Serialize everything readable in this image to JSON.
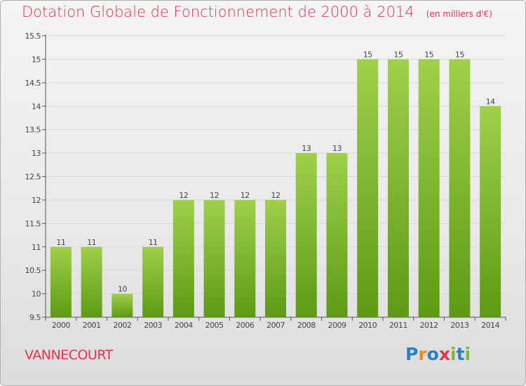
{
  "title": "Dotation Globale de Fonctionnement de 2000 à 2014",
  "unit_note": "(en milliers d'€)",
  "town": "VANNECOURT",
  "logo": {
    "text": "Proxiti",
    "letters": [
      "P",
      "r",
      "o",
      "x",
      "i",
      "t",
      "i"
    ],
    "colors": [
      "#2b7fc6",
      "#f28a1c",
      "#2b7fc6",
      "#e0344c",
      "#7db83a",
      "#2b7fc6",
      "#7db83a"
    ]
  },
  "colors": {
    "bar_top": "#9fd04a",
    "bar_bottom": "#5e9a14",
    "title": "#e0344c",
    "grid": "#d9d9d9"
  },
  "chart_data": {
    "type": "bar",
    "title": "Dotation Globale de Fonctionnement de 2000 à 2014",
    "subtitle": "(en milliers d'€)",
    "xlabel": "",
    "ylabel": "",
    "categories": [
      "2000",
      "2001",
      "2002",
      "2003",
      "2004",
      "2005",
      "2006",
      "2007",
      "2008",
      "2009",
      "2010",
      "2011",
      "2012",
      "2013",
      "2014"
    ],
    "values": [
      11,
      11,
      10,
      11,
      12,
      12,
      12,
      12,
      13,
      13,
      15,
      15,
      15,
      15,
      14
    ],
    "data_labels": [
      "11",
      "11",
      "10",
      "11",
      "12",
      "12",
      "12",
      "12",
      "13",
      "13",
      "15",
      "15",
      "15",
      "15",
      "14"
    ],
    "ylim": [
      9.5,
      15.5
    ],
    "yticks": [
      9.5,
      10,
      10.5,
      11,
      11.5,
      12,
      12.5,
      13,
      13.5,
      14,
      14.5,
      15,
      15.5
    ],
    "ytick_labels": [
      "9.5",
      "10",
      "10.5",
      "11",
      "11.5",
      "12",
      "12.5",
      "13",
      "13.5",
      "14",
      "14.5",
      "15",
      "15.5"
    ],
    "grid": true,
    "legend": "none"
  }
}
